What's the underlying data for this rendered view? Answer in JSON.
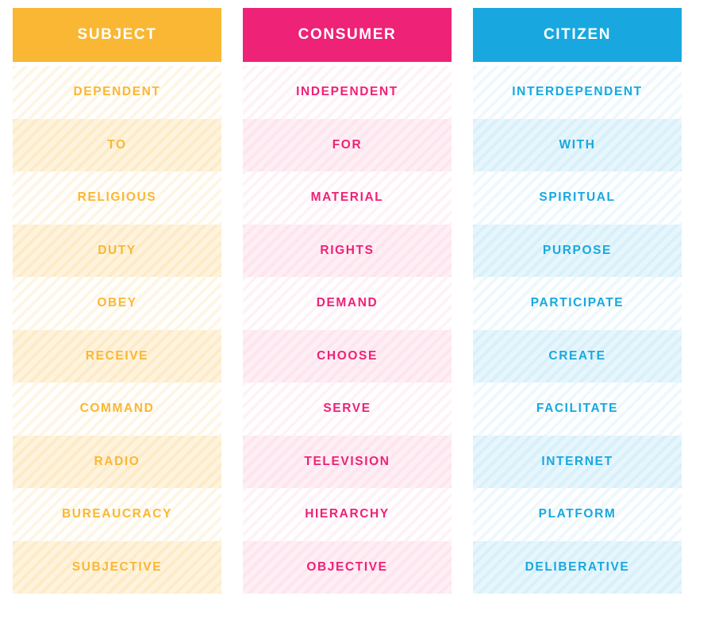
{
  "colors": {
    "subject": "#F9B733",
    "consumer": "#EE2277",
    "citizen": "#18A8DF"
  },
  "table": {
    "columns": [
      {
        "header": "SUBJECT",
        "rows": [
          "DEPENDENT",
          "TO",
          "RELIGIOUS",
          "DUTY",
          "OBEY",
          "RECEIVE",
          "COMMAND",
          "RADIO",
          "BUREAUCRACY",
          "SUBJECTIVE"
        ]
      },
      {
        "header": "CONSUMER",
        "rows": [
          "INDEPENDENT",
          "FOR",
          "MATERIAL",
          "RIGHTS",
          "DEMAND",
          "CHOOSE",
          "SERVE",
          "TELEVISION",
          "HIERARCHY",
          "OBJECTIVE"
        ]
      },
      {
        "header": "CITIZEN",
        "rows": [
          "INTERDEPENDENT",
          "WITH",
          "SPIRITUAL",
          "PURPOSE",
          "PARTICIPATE",
          "CREATE",
          "FACILITATE",
          "INTERNET",
          "PLATFORM",
          "DELIBERATIVE"
        ]
      }
    ]
  },
  "chart_data": {
    "type": "table",
    "title": "",
    "columns": [
      "SUBJECT",
      "CONSUMER",
      "CITIZEN"
    ],
    "rows": [
      [
        "DEPENDENT",
        "INDEPENDENT",
        "INTERDEPENDENT"
      ],
      [
        "TO",
        "FOR",
        "WITH"
      ],
      [
        "RELIGIOUS",
        "MATERIAL",
        "SPIRITUAL"
      ],
      [
        "DUTY",
        "RIGHTS",
        "PURPOSE"
      ],
      [
        "OBEY",
        "DEMAND",
        "PARTICIPATE"
      ],
      [
        "RECEIVE",
        "CHOOSE",
        "CREATE"
      ],
      [
        "COMMAND",
        "SERVE",
        "FACILITATE"
      ],
      [
        "RADIO",
        "TELEVISION",
        "INTERNET"
      ],
      [
        "BUREAUCRACY",
        "HIERARCHY",
        "PLATFORM"
      ],
      [
        "SUBJECTIVE",
        "OBJECTIVE",
        "DELIBERATIVE"
      ]
    ],
    "layout_hints": {
      "column_header_style": "solid fill, white uppercase bold text",
      "row_style": "alternating white / tinted rows with diagonal hatch stripes rising left-to-right",
      "column_colors": [
        "#F9B733",
        "#EE2277",
        "#18A8DF"
      ]
    }
  }
}
